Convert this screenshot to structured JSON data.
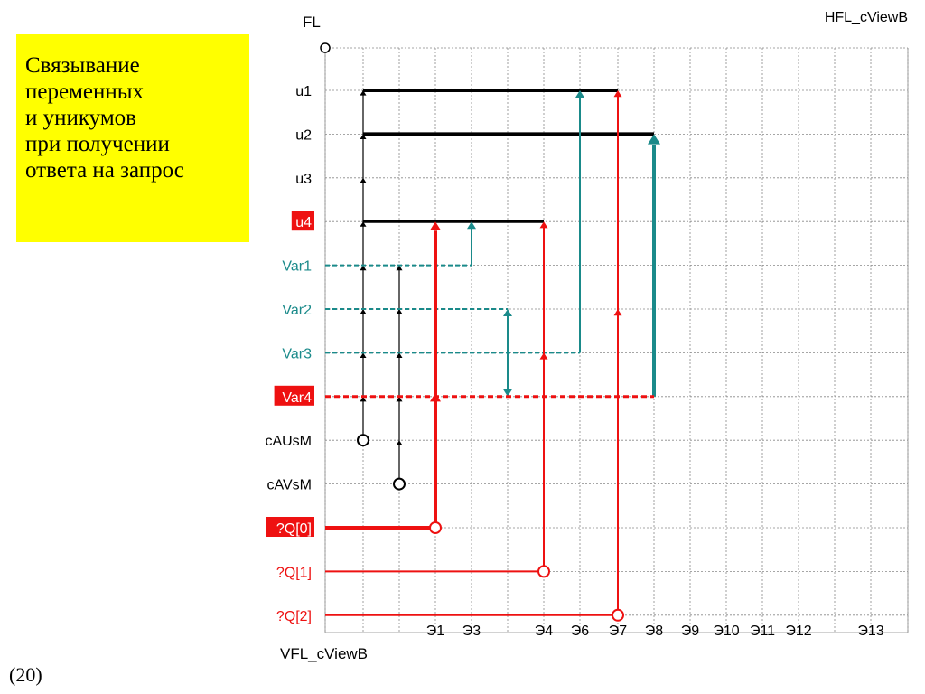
{
  "note": {
    "lines": [
      "Связывание",
      "переменных",
      "и уникумов",
      "при получении",
      "ответа на запрос"
    ]
  },
  "caption": "(20)",
  "diagram": {
    "top_label": "FL",
    "top_right_label": "HFL_cViewB",
    "bottom_label": "VFL_cViewB",
    "rows": [
      {
        "label": "u1",
        "color": "#000000",
        "highlight": false
      },
      {
        "label": "u2",
        "color": "#000000",
        "highlight": false
      },
      {
        "label": "u3",
        "color": "#000000",
        "highlight": false
      },
      {
        "label": "u4",
        "color": "#ffffff",
        "highlight": true
      },
      {
        "label": "Var1",
        "color": "#1a8a8a",
        "highlight": false
      },
      {
        "label": "Var2",
        "color": "#1a8a8a",
        "highlight": false
      },
      {
        "label": "Var3",
        "color": "#1a8a8a",
        "highlight": false
      },
      {
        "label": "Var4",
        "color": "#ffffff",
        "highlight": true
      },
      {
        "label": "cAUsM",
        "color": "#000000",
        "highlight": false
      },
      {
        "label": "cAVsM",
        "color": "#000000",
        "highlight": false
      },
      {
        "label": "?Q[0]",
        "color": "#ffffff",
        "highlight": true
      },
      {
        "label": "?Q[1]",
        "color": "#ee1111",
        "highlight": false
      },
      {
        "label": "?Q[2]",
        "color": "#ee1111",
        "highlight": false
      }
    ],
    "columns": [
      "Э1",
      "Э3",
      "Э4",
      "Э6",
      "Э7",
      "Э8",
      "Э9",
      "Э10",
      "Э11",
      "Э12",
      "Э13"
    ],
    "colors": {
      "black": "#000000",
      "teal": "#1a8a8a",
      "red": "#ee1111",
      "highlight": "#ee1111",
      "grid": "#888888"
    }
  }
}
